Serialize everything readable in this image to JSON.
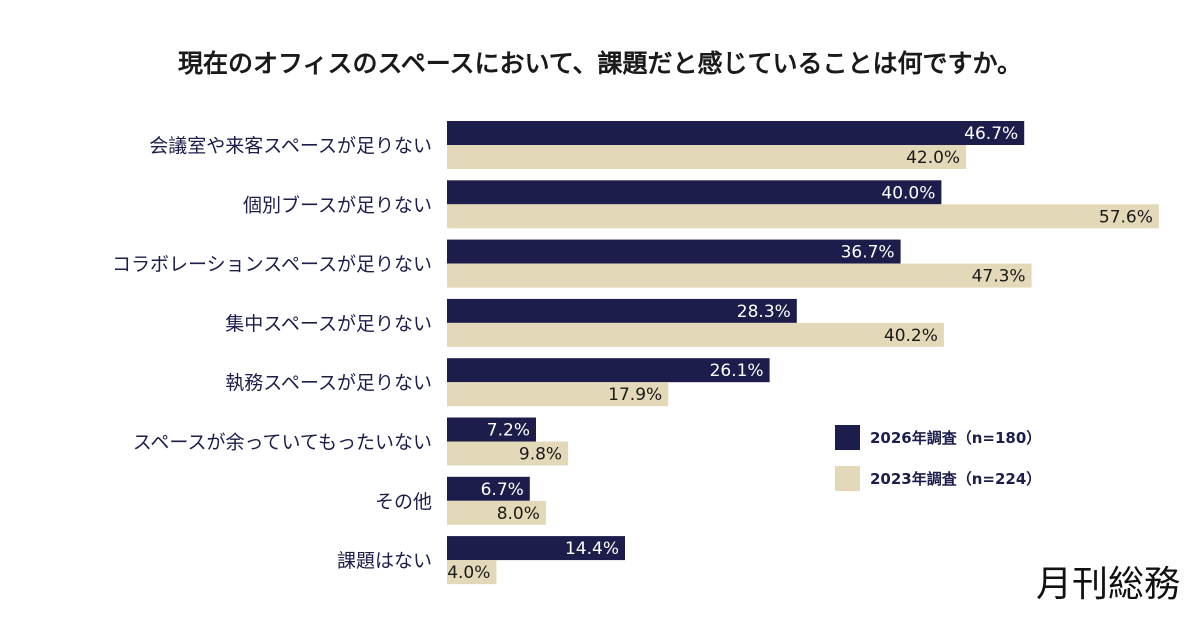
{
  "chart_data": {
    "type": "bar",
    "orientation": "horizontal",
    "title": "現在のオフィスのスペースにおいて、課題だと感じていることは何ですか。",
    "categories": [
      "会議室や来客スペースが足りない",
      "個別ブースが足りない",
      "コラボレーションスペースが足りない",
      "集中スペースが足りない",
      "執務スペースが足りない",
      "スペースが余っていてもったいない",
      "その他",
      "課題はない"
    ],
    "series": [
      {
        "name": "2026年調査（n=180）",
        "color": "#1c1d4a",
        "label_color": "#ffffff",
        "values": [
          46.7,
          40.0,
          36.7,
          28.3,
          26.1,
          7.2,
          6.7,
          14.4
        ],
        "labels": [
          "46.7%",
          "40.0%",
          "36.7%",
          "28.3%",
          "26.1%",
          "7.2%",
          "6.7%",
          "14.4%"
        ]
      },
      {
        "name": "2023年調査（n=224）",
        "color": "#e3d8b7",
        "label_color": "#1a1a1a",
        "values": [
          42.0,
          57.6,
          47.3,
          40.2,
          17.9,
          9.8,
          8.0,
          4.0
        ],
        "labels": [
          "42.0%",
          "57.6%",
          "47.3%",
          "40.2%",
          "17.9%",
          "9.8%",
          "8.0%",
          "4.0%"
        ]
      }
    ],
    "value_unit": "%",
    "xlim": [
      0,
      57.6
    ],
    "grid": false,
    "legend_position": "right"
  },
  "brand": {
    "name": "月刊総務"
  }
}
